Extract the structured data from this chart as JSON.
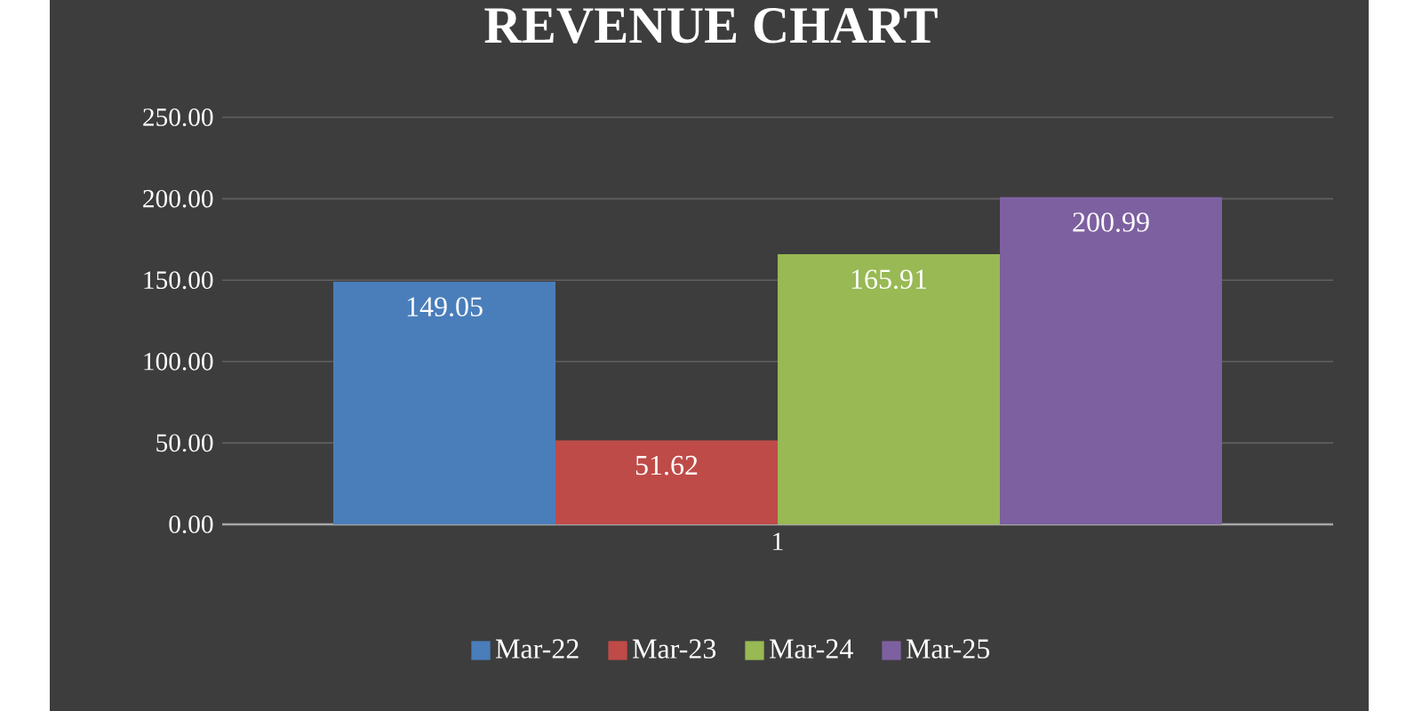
{
  "chart_data": {
    "type": "bar",
    "title": "REVENUE CHART",
    "categories": [
      "1"
    ],
    "series": [
      {
        "name": "Mar-22",
        "color": "#4a7ebb",
        "values": [
          149.05
        ],
        "value_labels": [
          "149.05"
        ]
      },
      {
        "name": "Mar-23",
        "color": "#be4b48",
        "values": [
          51.62
        ],
        "value_labels": [
          "51.62"
        ]
      },
      {
        "name": "Mar-24",
        "color": "#98b954",
        "values": [
          165.91
        ],
        "value_labels": [
          "165.91"
        ]
      },
      {
        "name": "Mar-25",
        "color": "#7d60a0",
        "values": [
          200.99
        ],
        "value_labels": [
          "200.99"
        ]
      }
    ],
    "ylim": [
      0,
      250
    ],
    "yticks": [
      {
        "value": 0,
        "label": "0.00"
      },
      {
        "value": 50,
        "label": "50.00"
      },
      {
        "value": 100,
        "label": "100.00"
      },
      {
        "value": 150,
        "label": "150.00"
      },
      {
        "value": 200,
        "label": "200.00"
      },
      {
        "value": 250,
        "label": "250.00"
      }
    ],
    "grid": "y",
    "legend": "bottom"
  }
}
